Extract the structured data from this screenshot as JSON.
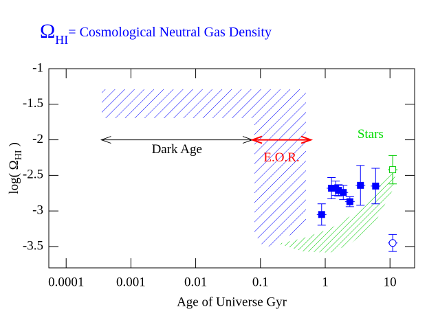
{
  "chart_data": {
    "type": "scatter",
    "title": {
      "symbol": "Ω",
      "subscript": "HI",
      "text": "= Cosmological Neutral Gas Density",
      "color": "#0000ff"
    },
    "xlabel": "Age of Universe  Gyr",
    "ylabel": {
      "before": "log( Ω",
      "subscript": "HI",
      "after": " )"
    },
    "xscale": "log",
    "xlim": [
      5.4e-05,
      24
    ],
    "ylim": [
      -3.8,
      -1
    ],
    "xticks": [
      0.0001,
      0.001,
      0.01,
      0.1,
      1,
      10
    ],
    "yticks": [
      -1,
      -1.5,
      -2,
      -2.5,
      -3,
      -3.5
    ],
    "series": [
      {
        "color": "#0000ff",
        "marker": "filled-square",
        "x": [
          0.88,
          1.25,
          1.45,
          1.6,
          1.9,
          2.4,
          3.5,
          6.0
        ],
        "values": [
          -3.05,
          -2.68,
          -2.68,
          -2.71,
          -2.74,
          -2.87,
          -2.64,
          -2.65
        ],
        "errors": [
          0.15,
          0.15,
          0.1,
          0.08,
          0.1,
          0.07,
          0.28,
          0.25
        ]
      },
      {
        "color": "#00cc00",
        "marker": "open-square",
        "x": [
          11
        ],
        "values": [
          -2.42
        ],
        "errors": [
          0.2
        ]
      },
      {
        "color": "#0000ff",
        "marker": "open-circle",
        "x": [
          11
        ],
        "values": [
          -3.45
        ],
        "errors": [
          0.12
        ]
      }
    ],
    "eras": [
      {
        "label": "Dark Age",
        "start": 0.00035,
        "end": 0.075,
        "y": -2,
        "color": "#000000"
      },
      {
        "label": "E.O.R.",
        "start": 0.075,
        "end": 0.6,
        "y": -2,
        "color": "#ff0000"
      }
    ],
    "annotations": [
      {
        "text": "Stars",
        "x": 5,
        "y": -2.05,
        "color": "#00dd00"
      }
    ]
  }
}
